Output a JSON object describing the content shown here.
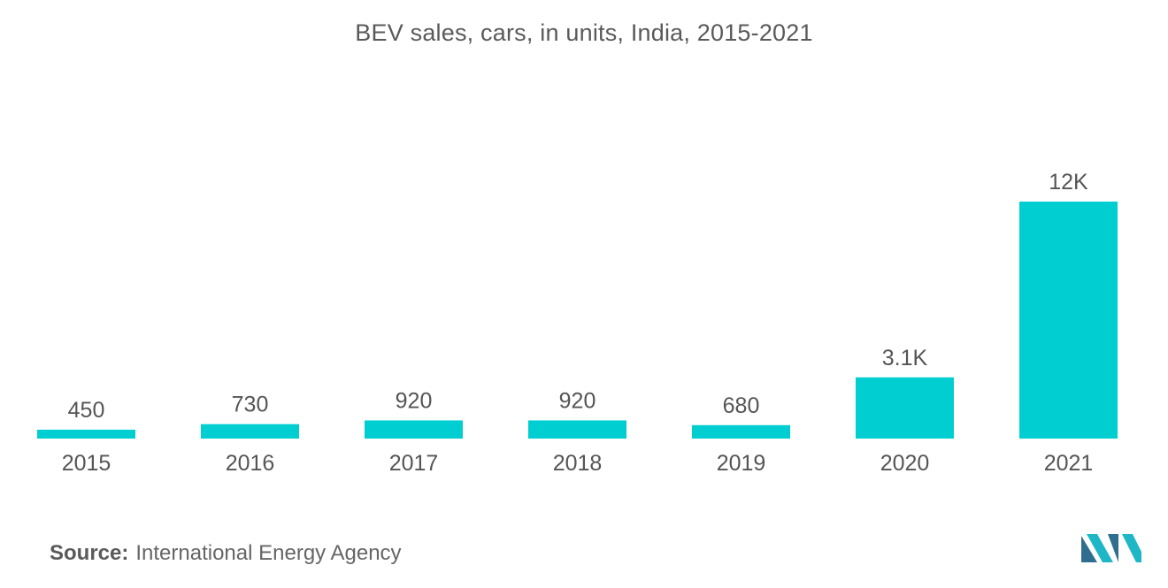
{
  "chart_data": {
    "type": "bar",
    "title": "BEV sales, cars, in units, India, 2015-2021",
    "categories": [
      "2015",
      "2016",
      "2017",
      "2018",
      "2019",
      "2020",
      "2021"
    ],
    "values": [
      450,
      730,
      920,
      920,
      680,
      3100,
      12000
    ],
    "data_labels": [
      "450",
      "730",
      "920",
      "920",
      "680",
      "3.1K",
      "12K"
    ],
    "xlabel": "",
    "ylabel": "",
    "ylim": [
      0,
      12000
    ],
    "grid": false,
    "legend": "none",
    "bar_color": "#00ced1"
  },
  "source": {
    "label": "Source:",
    "value": "International Energy Agency"
  },
  "logo": {
    "icon": "mordor-intelligence-logo",
    "colors": [
      "#2f6e8e",
      "#1fb6c6"
    ]
  }
}
